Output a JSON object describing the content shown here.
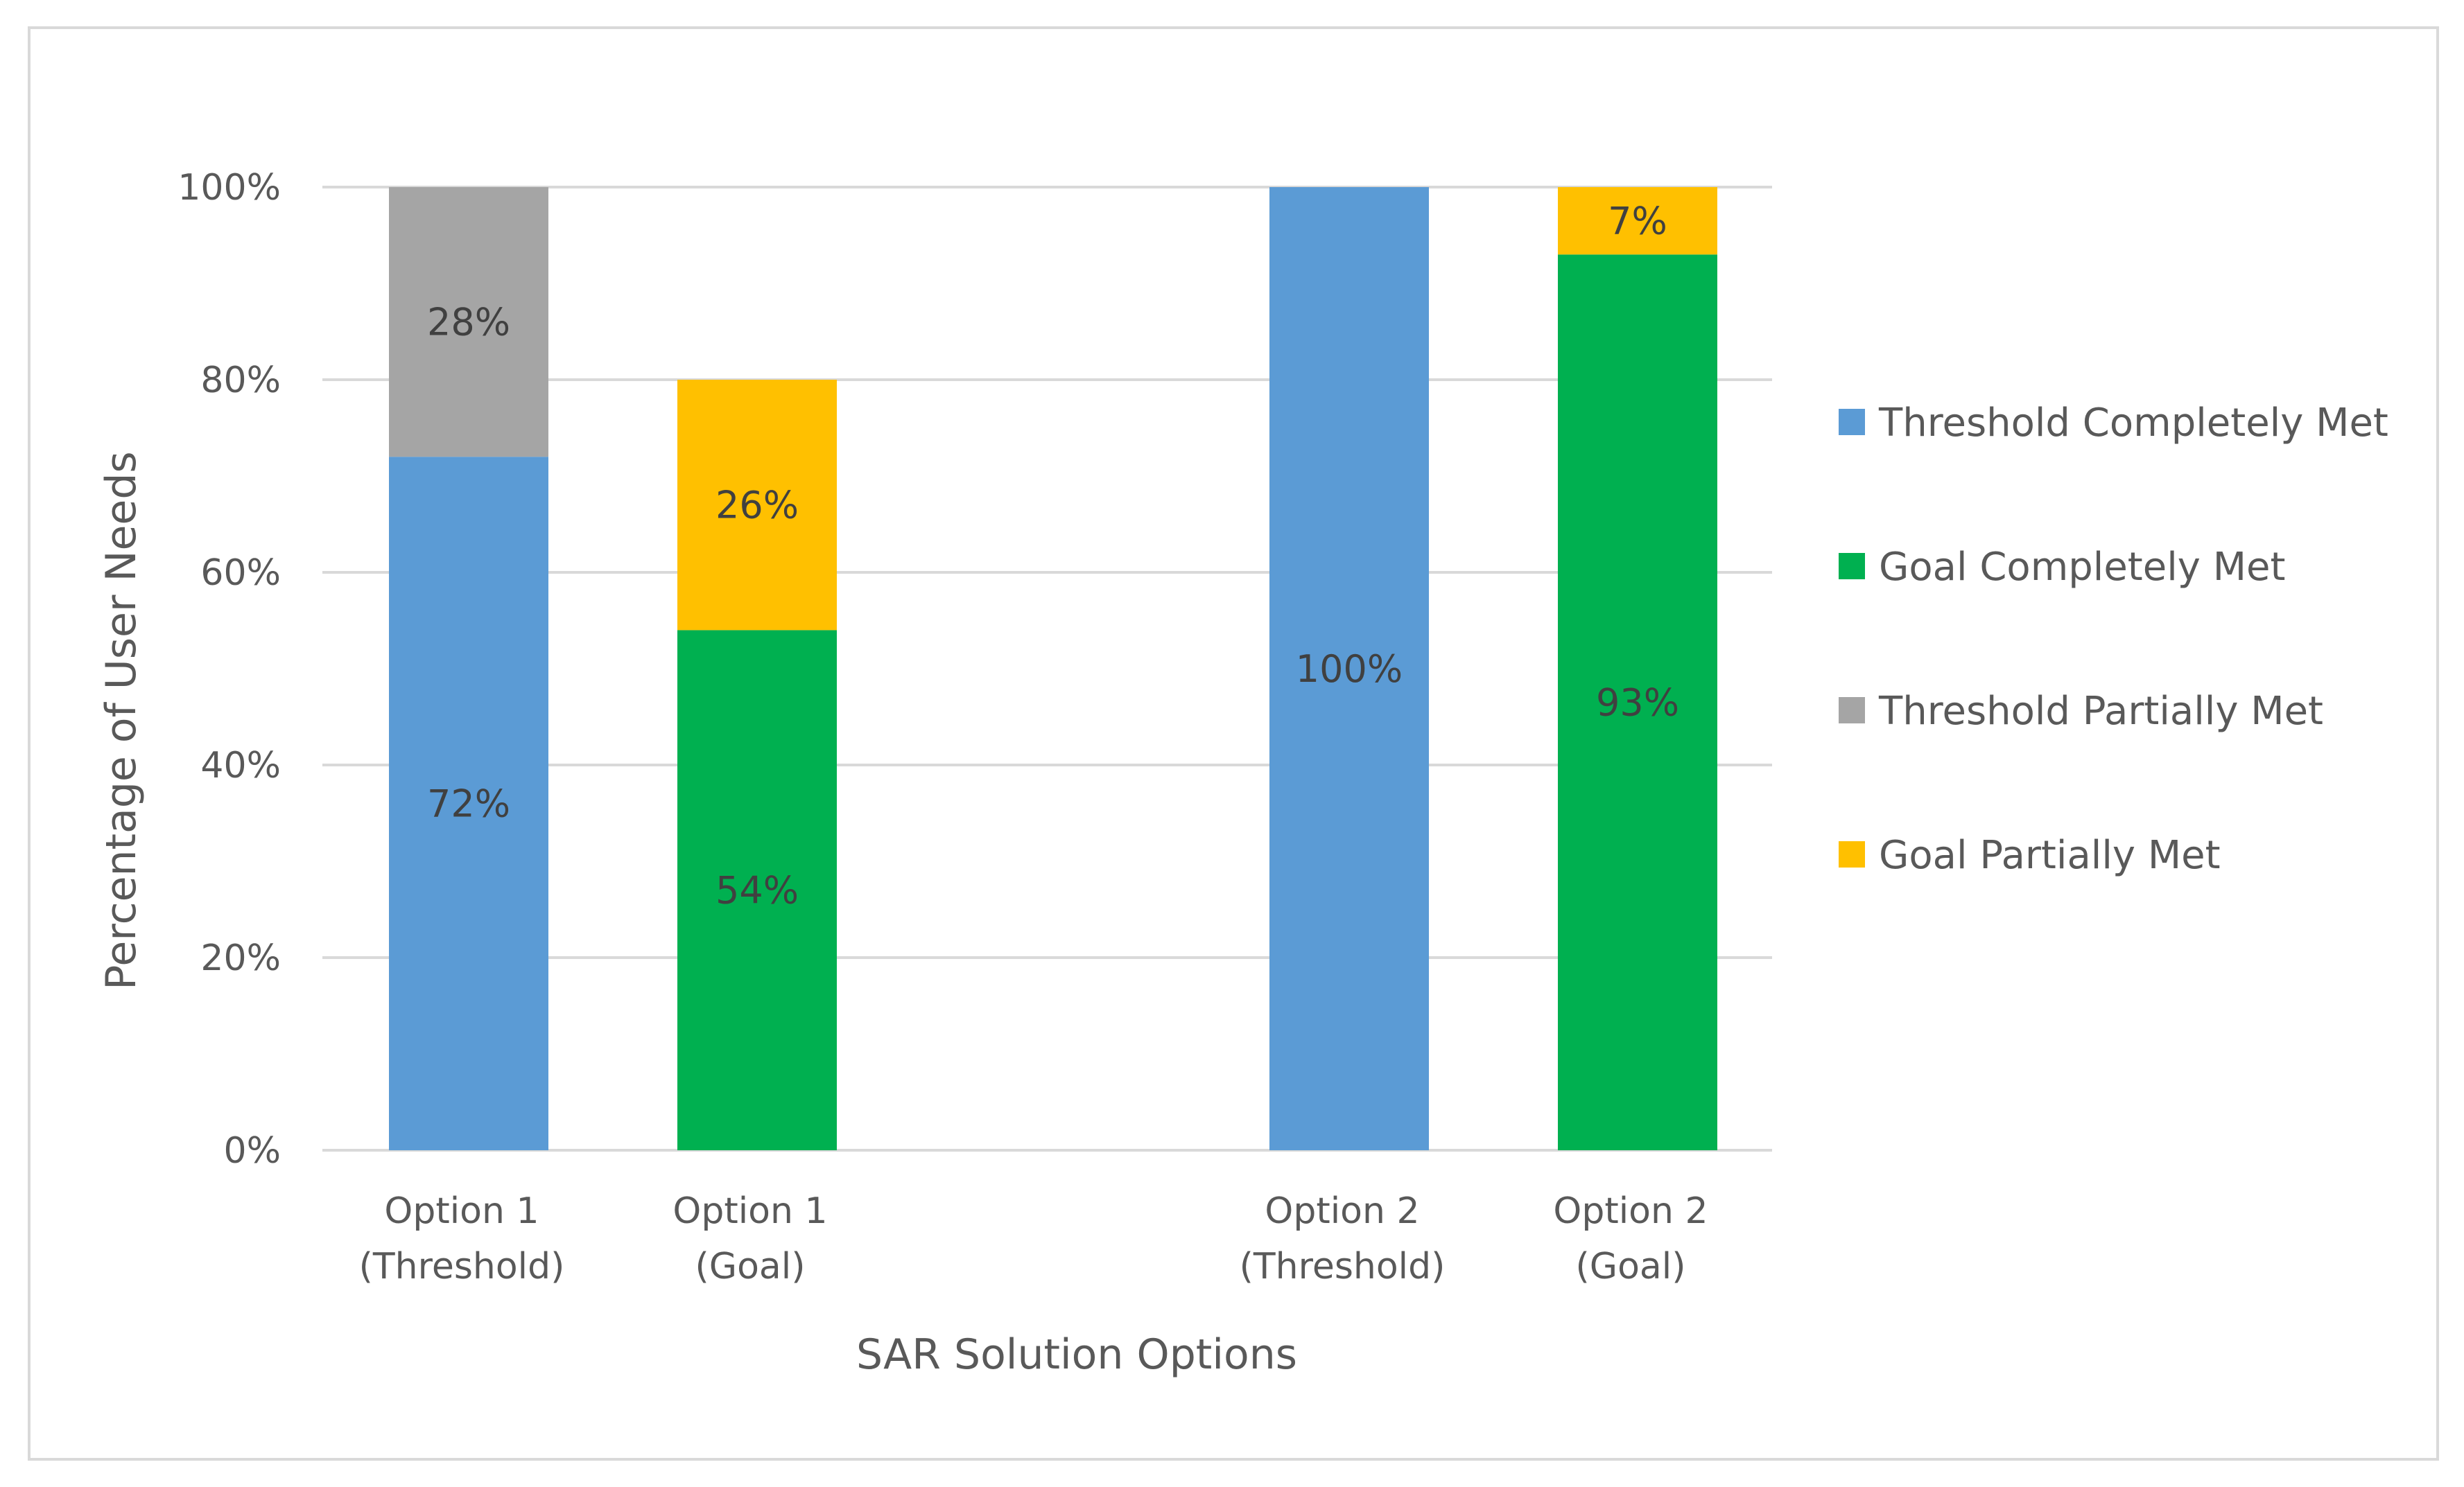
{
  "chart_data": {
    "type": "bar",
    "stacked": true,
    "title": "",
    "xlabel": "SAR Solution Options",
    "ylabel": "Percentage of User Needs",
    "ylim": [
      0,
      100
    ],
    "yticks": [
      "0%",
      "20%",
      "40%",
      "60%",
      "80%",
      "100%"
    ],
    "categories": [
      [
        "Option 1",
        "(Threshold)"
      ],
      [
        "Option 1",
        "(Goal)"
      ],
      [
        "Option 2",
        "(Threshold)"
      ],
      [
        "Option 2",
        "(Goal)"
      ]
    ],
    "series": [
      {
        "name": "Threshold Completely Met",
        "color": "#5b9bd5",
        "values": [
          72,
          0,
          100,
          0
        ],
        "labels": [
          "72%",
          "",
          "100%",
          ""
        ]
      },
      {
        "name": "Goal Completely Met",
        "color": "#00b050",
        "values": [
          0,
          54,
          0,
          93
        ],
        "labels": [
          "",
          "54%",
          "",
          "93%"
        ]
      },
      {
        "name": "Threshold Partially Met",
        "color": "#a5a5a5",
        "values": [
          28,
          0,
          0,
          0
        ],
        "labels": [
          "28%",
          "",
          "",
          ""
        ]
      },
      {
        "name": "Goal Partially Met",
        "color": "#ffc000",
        "values": [
          0,
          26,
          0,
          7
        ],
        "labels": [
          "",
          "26%",
          "",
          "7%"
        ]
      }
    ],
    "grid": true,
    "legend_position": "right"
  }
}
